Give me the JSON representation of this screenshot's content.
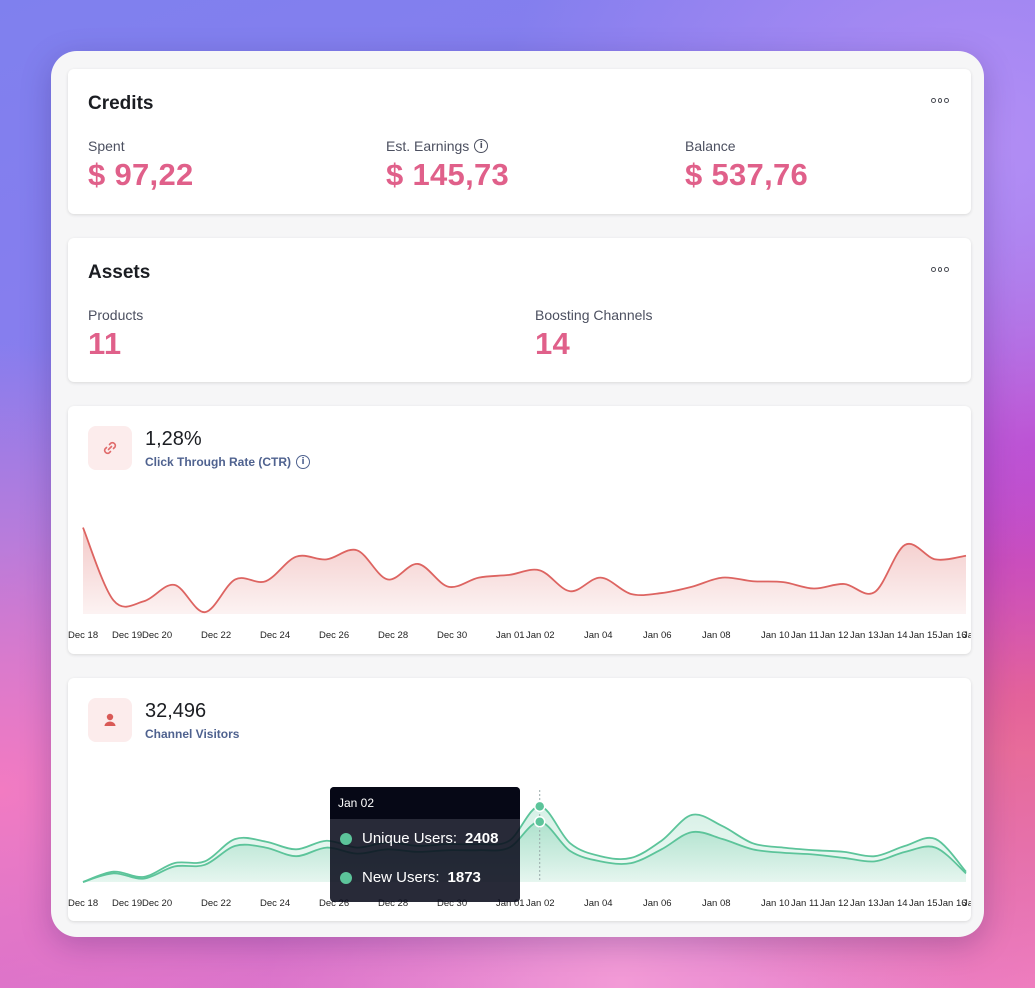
{
  "credits": {
    "title": "Credits",
    "spent_label": "Spent",
    "spent_value": "$ 97,22",
    "earnings_label": "Est. Earnings",
    "earnings_value": "$ 145,73",
    "balance_label": "Balance",
    "balance_value": "$ 537,76"
  },
  "assets": {
    "title": "Assets",
    "products_label": "Products",
    "products_value": "11",
    "channels_label": "Boosting Channels",
    "channels_value": "14"
  },
  "ctr": {
    "value": "1,28%",
    "label": "Click Through Rate (CTR)",
    "icon": "link-icon"
  },
  "visitors": {
    "value": "32,496",
    "label": "Channel Visitors",
    "icon": "user-icon"
  },
  "tooltip": {
    "date": "Jan 02",
    "unique_label": "Unique Users:",
    "unique_value": "2408",
    "new_label": "New Users:",
    "new_value": "1873"
  },
  "colors": {
    "accent": "#e0608a",
    "ctr_line": "#dd6461",
    "visitors_line": "#5cc49a"
  },
  "chart_data": [
    {
      "type": "area",
      "x": [
        "Dec 18",
        "Dec 19",
        "Dec 20",
        "Dec 21",
        "Dec 22",
        "Dec 23",
        "Dec 24",
        "Dec 25",
        "Dec 26",
        "Dec 27",
        "Dec 28",
        "Dec 29",
        "Dec 30",
        "Dec 31",
        "Jan 01",
        "Jan 02",
        "Jan 03",
        "Jan 04",
        "Jan 05",
        "Jan 06",
        "Jan 07",
        "Jan 08",
        "Jan 09",
        "Jan 10",
        "Jan 11",
        "Jan 12",
        "Jan 13",
        "Jan 14",
        "Jan 15",
        "Jan 16"
      ],
      "tick_labels": [
        "Dec 18",
        "Dec 19",
        "Dec 20",
        "Dec 22",
        "Dec 24",
        "Dec 26",
        "Dec 28",
        "Dec 30",
        "Jan 01",
        "Jan 02",
        "Jan 04",
        "Jan 06",
        "Jan 08",
        "Jan 10",
        "Jan 11",
        "Jan 12",
        "Jan 13",
        "Jan 14",
        "Jan 15",
        "Jan 16",
        "Jan"
      ],
      "series": [
        {
          "values": [
            95,
            15,
            14,
            32,
            2,
            38,
            36,
            63,
            60,
            70,
            38,
            55,
            30,
            40,
            43,
            48,
            25,
            40,
            22,
            23,
            30,
            40,
            36,
            35,
            28,
            33,
            24,
            76,
            60,
            64
          ]
        }
      ],
      "ylim": [
        0,
        100
      ]
    },
    {
      "type": "area",
      "x": [
        "Dec 18",
        "Dec 19",
        "Dec 20",
        "Dec 21",
        "Dec 22",
        "Dec 23",
        "Dec 24",
        "Dec 25",
        "Dec 26",
        "Dec 27",
        "Dec 28",
        "Dec 29",
        "Dec 30",
        "Dec 31",
        "Jan 01",
        "Jan 02",
        "Jan 03",
        "Jan 04",
        "Jan 05",
        "Jan 06",
        "Jan 07",
        "Jan 08",
        "Jan 09",
        "Jan 10",
        "Jan 11",
        "Jan 12",
        "Jan 13",
        "Jan 14",
        "Jan 15",
        "Jan 16"
      ],
      "tick_labels": [
        "Dec 18",
        "Dec 19",
        "Dec 20",
        "Dec 22",
        "Dec 24",
        "Dec 26",
        "Dec 28",
        "Dec 30",
        "Jan 01",
        "Jan 02",
        "Jan 04",
        "Jan 06",
        "Jan 08",
        "Jan 10",
        "Jan 11",
        "Jan 12",
        "Jan 13",
        "Jan 14",
        "Jan 15",
        "Jan 16",
        "Jan"
      ],
      "series": [
        {
          "name": "Unique Users",
          "values": [
            0,
            12,
            6,
            22,
            24,
            50,
            47,
            38,
            48,
            40,
            46,
            42,
            44,
            44,
            48,
            88,
            45,
            30,
            28,
            48,
            78,
            65,
            45,
            40,
            37,
            35,
            30,
            42,
            50,
            12
          ]
        },
        {
          "name": "New Users",
          "values": [
            0,
            10,
            4,
            18,
            20,
            42,
            40,
            30,
            40,
            33,
            38,
            35,
            37,
            37,
            40,
            70,
            36,
            24,
            22,
            38,
            58,
            50,
            38,
            34,
            32,
            28,
            24,
            35,
            40,
            10
          ]
        }
      ],
      "highlight_index": 15,
      "ylim": [
        0,
        100
      ]
    }
  ]
}
